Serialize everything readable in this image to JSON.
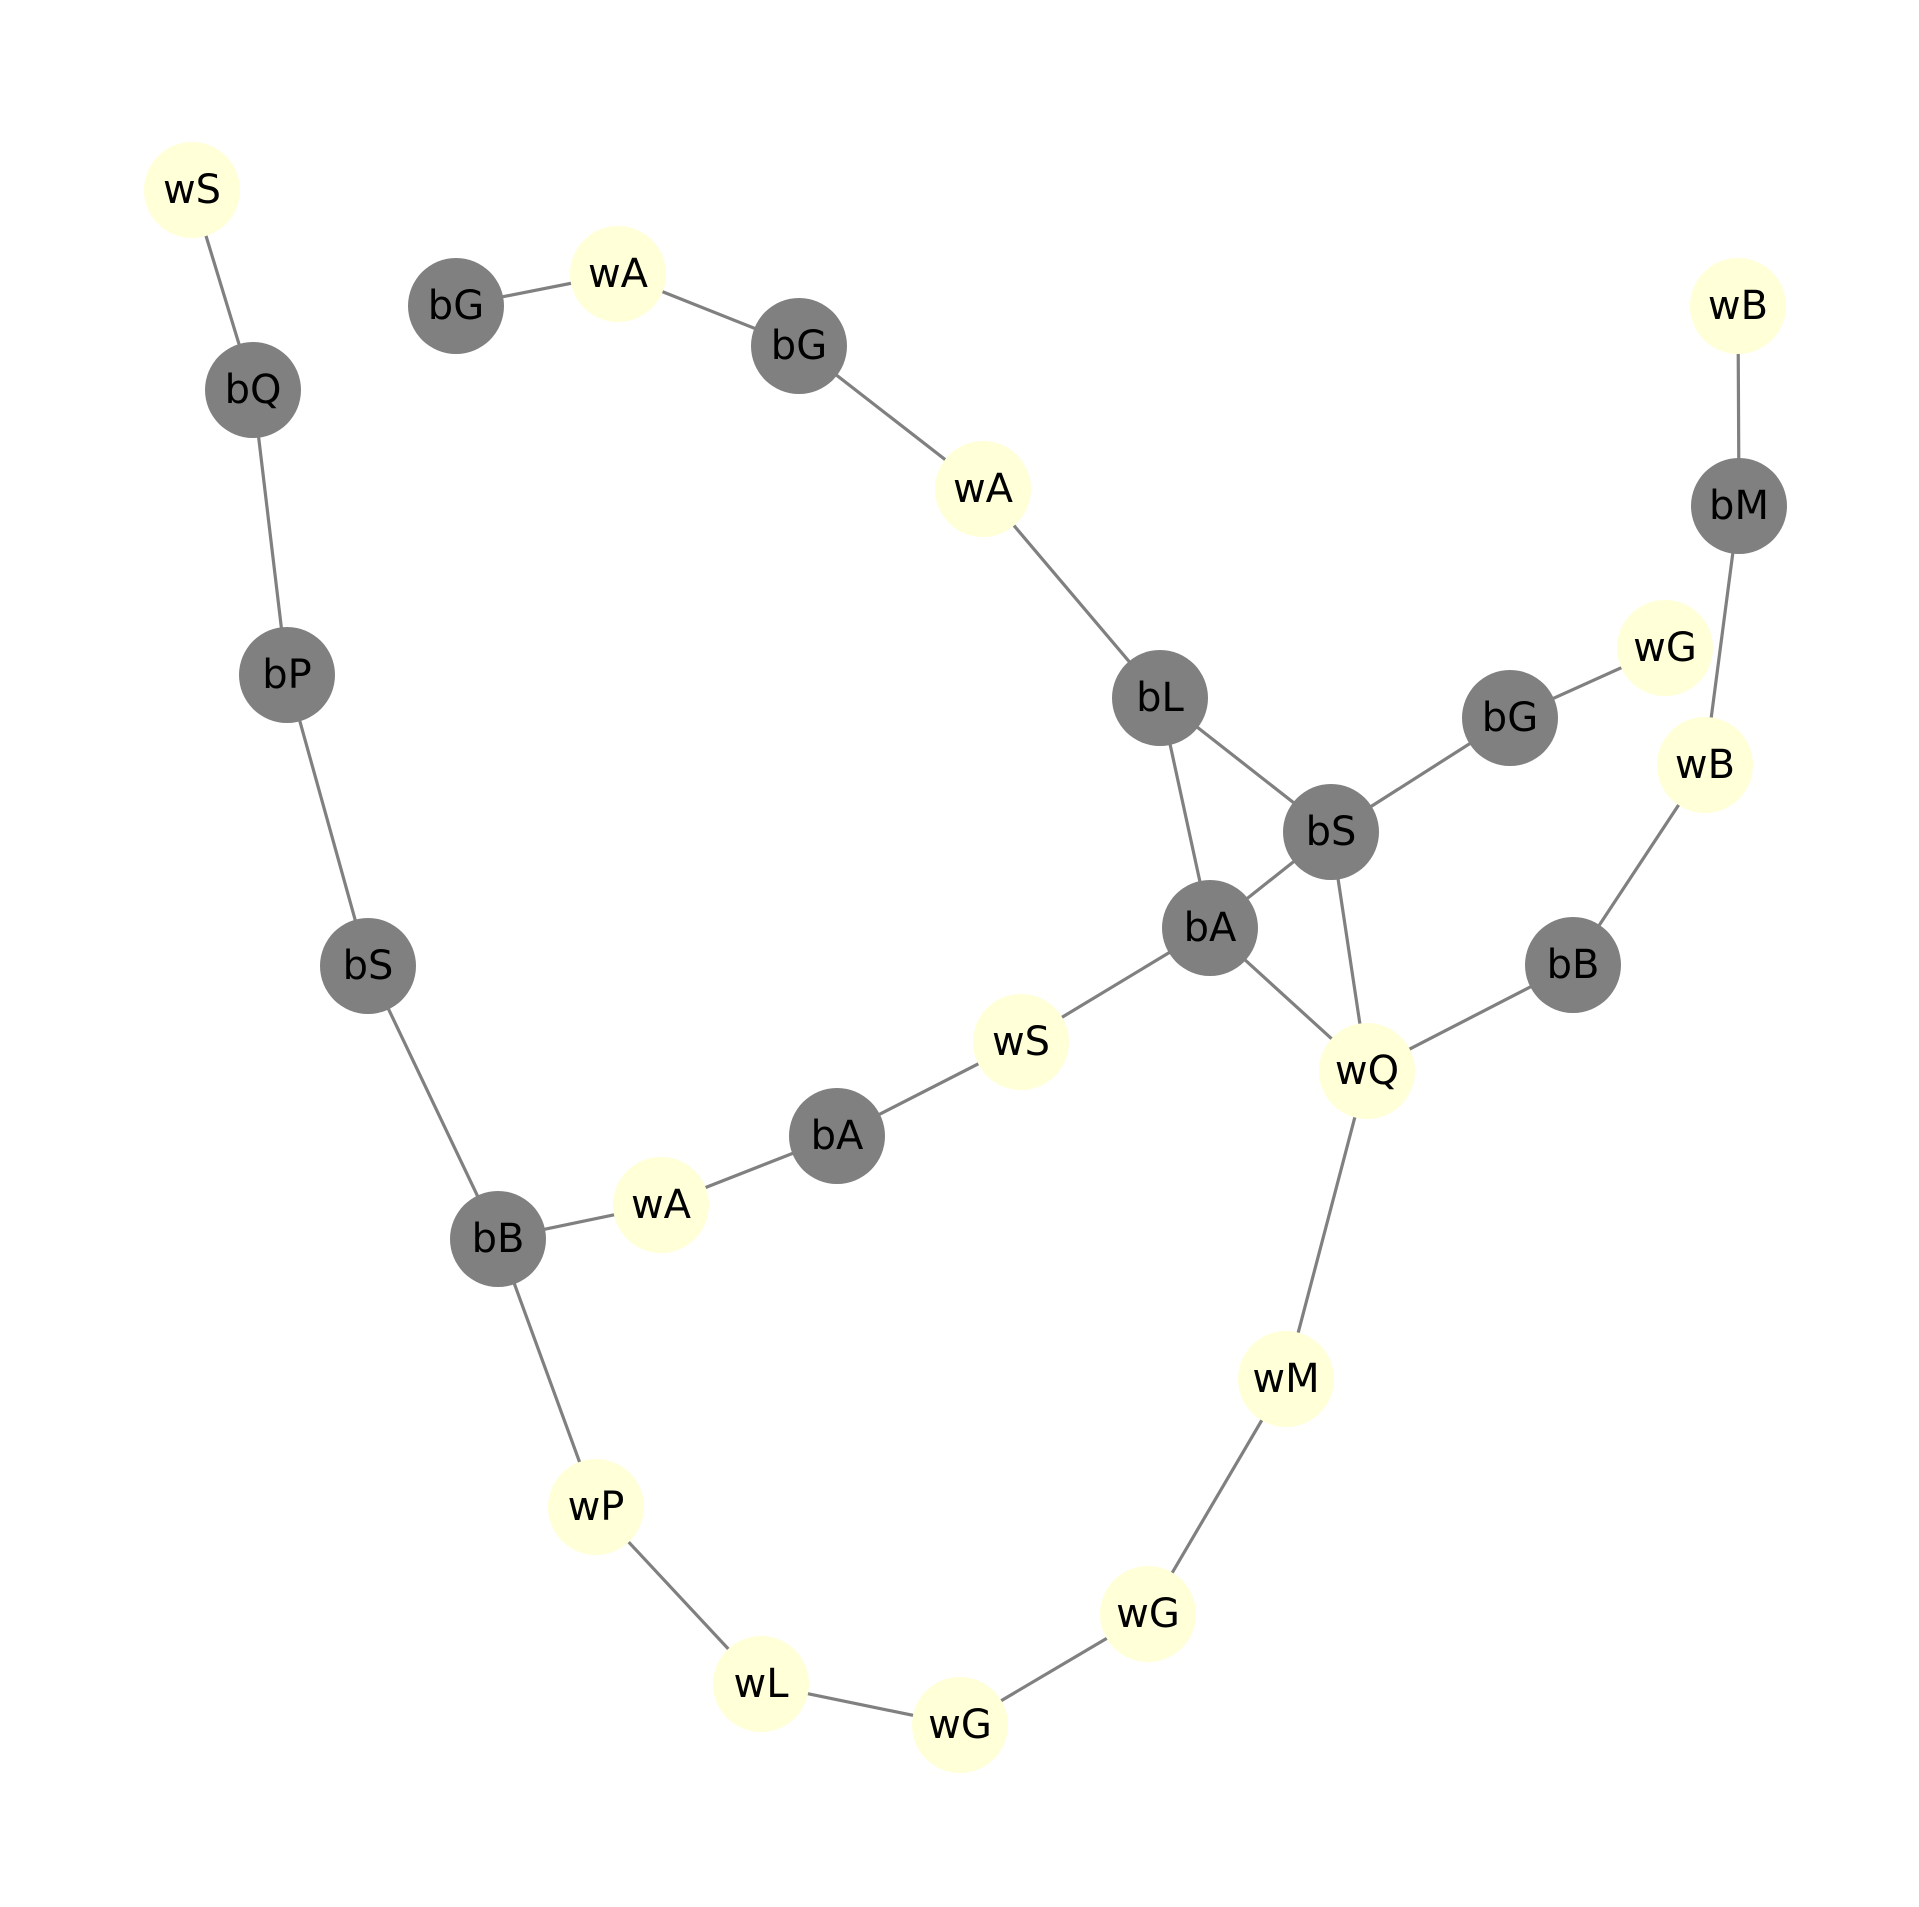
{
  "colors": {
    "black_node": "#808080",
    "white_node": "#ffffd8",
    "edge": "#808080",
    "label": "#000000",
    "background": "#ffffff"
  },
  "nodes": [
    {
      "id": "n_wS_top",
      "label": "wS",
      "color": "white"
    },
    {
      "id": "n_bQ",
      "label": "bQ",
      "color": "black"
    },
    {
      "id": "n_bP",
      "label": "bP",
      "color": "black"
    },
    {
      "id": "n_bS_left",
      "label": "bS",
      "color": "black"
    },
    {
      "id": "n_bB_left",
      "label": "bB",
      "color": "black"
    },
    {
      "id": "n_wA_low",
      "label": "wA",
      "color": "white"
    },
    {
      "id": "n_bA_mid",
      "label": "bA",
      "color": "black"
    },
    {
      "id": "n_wS_mid",
      "label": "wS",
      "color": "white"
    },
    {
      "id": "n_bA_right",
      "label": "bA",
      "color": "black"
    },
    {
      "id": "n_bL",
      "label": "bL",
      "color": "black"
    },
    {
      "id": "n_bS_right",
      "label": "bS",
      "color": "black"
    },
    {
      "id": "n_wQ",
      "label": "wQ",
      "color": "white"
    },
    {
      "id": "n_bB_right",
      "label": "bB",
      "color": "black"
    },
    {
      "id": "n_wB_mid",
      "label": "wB",
      "color": "white"
    },
    {
      "id": "n_bM",
      "label": "bM",
      "color": "black"
    },
    {
      "id": "n_wB_top",
      "label": "wB",
      "color": "white"
    },
    {
      "id": "n_bG_right",
      "label": "bG",
      "color": "black"
    },
    {
      "id": "n_wG_right",
      "label": "wG",
      "color": "white"
    },
    {
      "id": "n_wA_mid",
      "label": "wA",
      "color": "white"
    },
    {
      "id": "n_bG_mid",
      "label": "bG",
      "color": "black"
    },
    {
      "id": "n_wA_top",
      "label": "wA",
      "color": "white"
    },
    {
      "id": "n_bG_left",
      "label": "bG",
      "color": "black"
    },
    {
      "id": "n_wP",
      "label": "wP",
      "color": "white"
    },
    {
      "id": "n_wL",
      "label": "wL",
      "color": "white"
    },
    {
      "id": "n_wG_bottom",
      "label": "wG",
      "color": "white"
    },
    {
      "id": "n_wG_low",
      "label": "wG",
      "color": "white"
    },
    {
      "id": "n_wM",
      "label": "wM",
      "color": "white"
    }
  ],
  "edges": [
    [
      "n_wS_top",
      "n_bQ"
    ],
    [
      "n_bQ",
      "n_bP"
    ],
    [
      "n_bP",
      "n_bS_left"
    ],
    [
      "n_bS_left",
      "n_bB_left"
    ],
    [
      "n_bB_left",
      "n_wA_low"
    ],
    [
      "n_wA_low",
      "n_bA_mid"
    ],
    [
      "n_bA_mid",
      "n_wS_mid"
    ],
    [
      "n_wS_mid",
      "n_bA_right"
    ],
    [
      "n_bA_right",
      "n_bL"
    ],
    [
      "n_bA_right",
      "n_bS_right"
    ],
    [
      "n_bA_right",
      "n_wQ"
    ],
    [
      "n_bL",
      "n_bS_right"
    ],
    [
      "n_bL",
      "n_wA_mid"
    ],
    [
      "n_bS_right",
      "n_bG_right"
    ],
    [
      "n_bS_right",
      "n_wQ"
    ],
    [
      "n_bG_right",
      "n_wG_right"
    ],
    [
      "n_wQ",
      "n_bB_right"
    ],
    [
      "n_wQ",
      "n_wM"
    ],
    [
      "n_bB_right",
      "n_wB_mid"
    ],
    [
      "n_wB_mid",
      "n_bM"
    ],
    [
      "n_bM",
      "n_wB_top"
    ],
    [
      "n_wA_mid",
      "n_bG_mid"
    ],
    [
      "n_bG_mid",
      "n_wA_top"
    ],
    [
      "n_wA_top",
      "n_bG_left"
    ],
    [
      "n_bB_left",
      "n_wP"
    ],
    [
      "n_wP",
      "n_wL"
    ],
    [
      "n_wL",
      "n_wG_bottom"
    ],
    [
      "n_wG_bottom",
      "n_wG_low"
    ],
    [
      "n_wG_low",
      "n_wM"
    ]
  ]
}
